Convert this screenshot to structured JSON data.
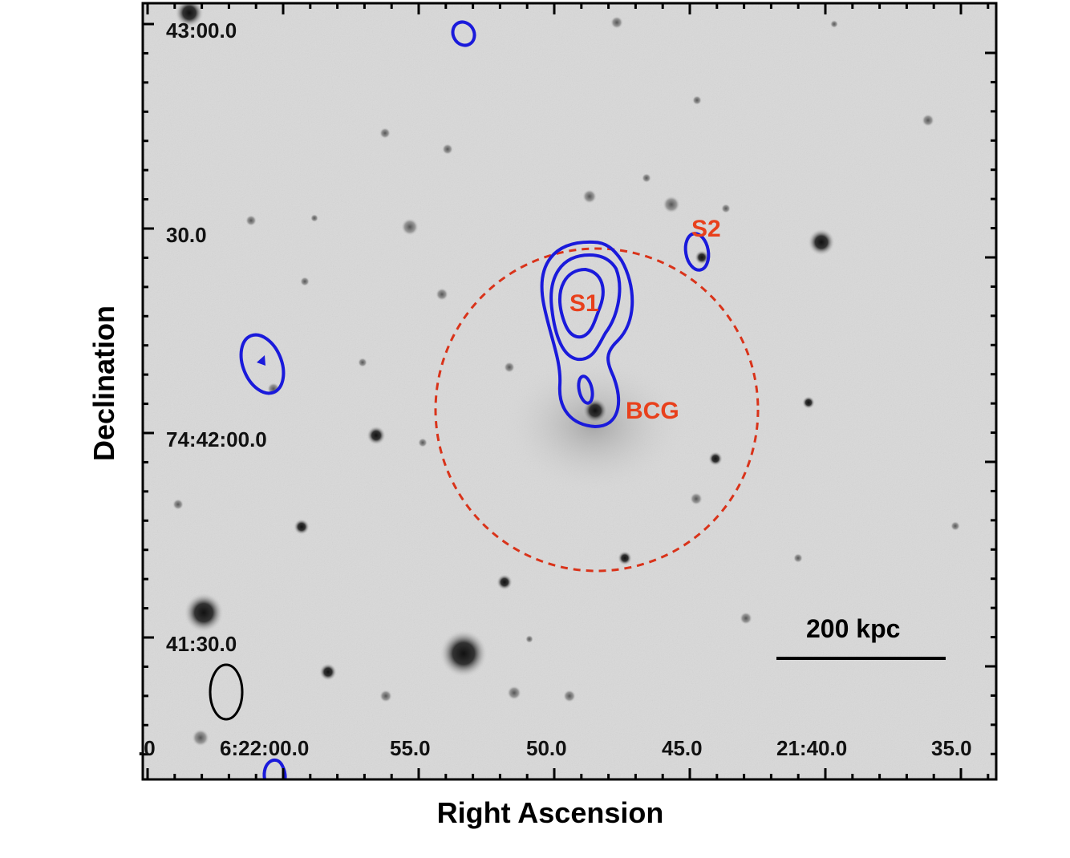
{
  "axes": {
    "xlabel": "Right Ascension",
    "ylabel": "Declination",
    "x_ticks": [
      ".0",
      "6:22:00.0",
      "55.0",
      "50.0",
      "45.0",
      "21:40.0",
      "35.0"
    ],
    "y_ticks": [
      "43:00.0",
      "30.0",
      "74:42:00.0",
      "41:30.0"
    ]
  },
  "annotations": {
    "s1": "S1",
    "s2": "S2",
    "bcg": "BCG",
    "scale_bar": "200 kpc"
  },
  "colors": {
    "background_sky": "#d9d9d9",
    "contours": "#1a1adb",
    "annotation_text": "#e8401c",
    "aperture_circle": "#d9331a",
    "beam": "#000000"
  },
  "icons": {
    "beam": "beam-ellipse-icon"
  }
}
